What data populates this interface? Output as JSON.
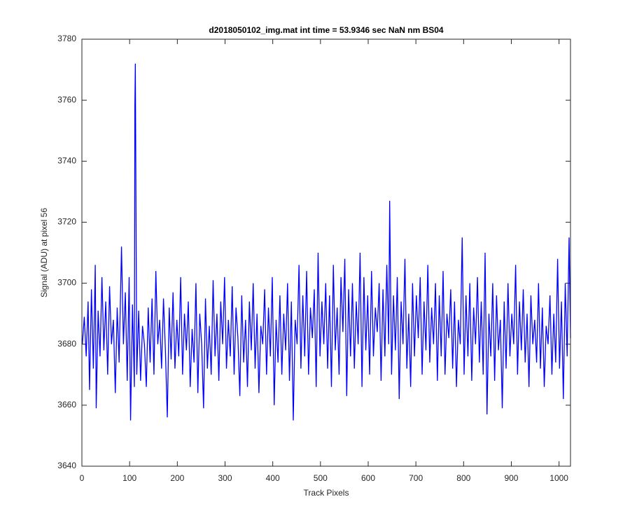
{
  "chart_data": {
    "type": "line",
    "title": "d2018050102_img.mat int time = 53.9346 sec  NaN nm BS04",
    "x_label": "Track Pixels",
    "y_label": "Signal (ADU) at pixel 56",
    "xlim": [
      0,
      1024
    ],
    "ylim": [
      3640,
      3780
    ],
    "xticks": [
      0,
      100,
      200,
      300,
      400,
      500,
      600,
      700,
      800,
      900,
      1000
    ],
    "yticks": [
      3640,
      3660,
      3680,
      3700,
      3720,
      3740,
      3760,
      3780
    ],
    "grid": false,
    "x": [
      1,
      5,
      9,
      13,
      16,
      20,
      24,
      28,
      30,
      34,
      38,
      42,
      46,
      50,
      54,
      58,
      62,
      66,
      70,
      74,
      78,
      83,
      87,
      91,
      95,
      99,
      102,
      106,
      110,
      111,
      112,
      115,
      119,
      123,
      127,
      131,
      135,
      139,
      143,
      147,
      151,
      155,
      159,
      163,
      167,
      171,
      175,
      179,
      183,
      187,
      191,
      195,
      199,
      203,
      207,
      211,
      215,
      219,
      223,
      227,
      231,
      235,
      239,
      243,
      247,
      251,
      255,
      259,
      263,
      267,
      271,
      275,
      279,
      283,
      287,
      291,
      295,
      299,
      303,
      307,
      311,
      315,
      319,
      323,
      327,
      331,
      335,
      339,
      343,
      347,
      351,
      355,
      359,
      363,
      367,
      371,
      375,
      379,
      383,
      387,
      391,
      395,
      399,
      403,
      407,
      411,
      415,
      419,
      423,
      427,
      431,
      435,
      439,
      443,
      447,
      451,
      455,
      459,
      463,
      467,
      471,
      475,
      479,
      483,
      487,
      491,
      495,
      499,
      503,
      507,
      511,
      515,
      519,
      523,
      527,
      531,
      535,
      539,
      543,
      547,
      551,
      555,
      559,
      563,
      567,
      571,
      575,
      579,
      583,
      587,
      591,
      595,
      599,
      603,
      607,
      611,
      615,
      619,
      623,
      627,
      631,
      635,
      639,
      643,
      645,
      649,
      653,
      657,
      661,
      665,
      669,
      673,
      677,
      681,
      685,
      689,
      693,
      697,
      701,
      705,
      709,
      713,
      717,
      721,
      725,
      729,
      733,
      737,
      741,
      745,
      749,
      753,
      757,
      761,
      765,
      769,
      773,
      777,
      781,
      785,
      789,
      793,
      797,
      801,
      805,
      809,
      813,
      817,
      821,
      825,
      829,
      833,
      837,
      841,
      845,
      849,
      853,
      857,
      861,
      865,
      869,
      873,
      877,
      881,
      885,
      889,
      893,
      897,
      901,
      905,
      909,
      913,
      917,
      921,
      925,
      929,
      933,
      937,
      941,
      945,
      949,
      953,
      957,
      961,
      965,
      969,
      973,
      977,
      981,
      985,
      989,
      993,
      997,
      1001,
      1005,
      1009,
      1013,
      1017,
      1021,
      1024
    ],
    "series": [
      {
        "color": "#0000ff",
        "values": [
          3680,
          3689,
          3676,
          3694,
          3665,
          3698,
          3672,
          3706,
          3659,
          3691,
          3676,
          3702,
          3678,
          3694,
          3670,
          3699,
          3680,
          3688,
          3664,
          3692,
          3674,
          3712,
          3680,
          3697,
          3668,
          3702,
          3655,
          3693,
          3666,
          3758,
          3772,
          3670,
          3691,
          3668,
          3686,
          3680,
          3666,
          3692,
          3674,
          3695,
          3670,
          3704,
          3680,
          3688,
          3672,
          3695,
          3678,
          3656,
          3692,
          3675,
          3697,
          3672,
          3688,
          3676,
          3702,
          3670,
          3690,
          3678,
          3694,
          3666,
          3685,
          3674,
          3700,
          3664,
          3690,
          3680,
          3659,
          3695,
          3672,
          3686,
          3670,
          3701,
          3676,
          3690,
          3668,
          3694,
          3680,
          3702,
          3672,
          3688,
          3676,
          3699,
          3670,
          3692,
          3682,
          3663,
          3696,
          3674,
          3688,
          3666,
          3694,
          3678,
          3700,
          3672,
          3690,
          3664,
          3686,
          3680,
          3698,
          3670,
          3692,
          3676,
          3702,
          3660,
          3688,
          3674,
          3696,
          3670,
          3690,
          3678,
          3700,
          3668,
          3694,
          3655,
          3688,
          3680,
          3706,
          3672,
          3696,
          3676,
          3704,
          3670,
          3692,
          3682,
          3698,
          3666,
          3710,
          3676,
          3694,
          3680,
          3700,
          3672,
          3696,
          3666,
          3706,
          3678,
          3692,
          3670,
          3702,
          3684,
          3708,
          3663,
          3698,
          3676,
          3700,
          3672,
          3694,
          3680,
          3710,
          3666,
          3702,
          3678,
          3696,
          3670,
          3704,
          3676,
          3692,
          3684,
          3700,
          3668,
          3698,
          3676,
          3706,
          3680,
          3727,
          3670,
          3696,
          3678,
          3702,
          3662,
          3694,
          3680,
          3708,
          3672,
          3690,
          3666,
          3700,
          3676,
          3696,
          3682,
          3702,
          3670,
          3694,
          3678,
          3706,
          3674,
          3692,
          3680,
          3700,
          3668,
          3696,
          3676,
          3704,
          3670,
          3690,
          3682,
          3698,
          3672,
          3694,
          3666,
          3688,
          3680,
          3715,
          3670,
          3696,
          3676,
          3700,
          3668,
          3692,
          3680,
          3702,
          3674,
          3694,
          3670,
          3710,
          3657,
          3690,
          3676,
          3700,
          3668,
          3696,
          3678,
          3688,
          3659,
          3694,
          3672,
          3700,
          3676,
          3690,
          3680,
          3706,
          3670,
          3694,
          3678,
          3698,
          3674,
          3690,
          3666,
          3696,
          3680,
          3688,
          3674,
          3700,
          3672,
          3692,
          3666,
          3686,
          3680,
          3696,
          3670,
          3690,
          3674,
          3708,
          3672,
          3694,
          3662,
          3700,
          3676,
          3715,
          3682
        ]
      }
    ]
  }
}
